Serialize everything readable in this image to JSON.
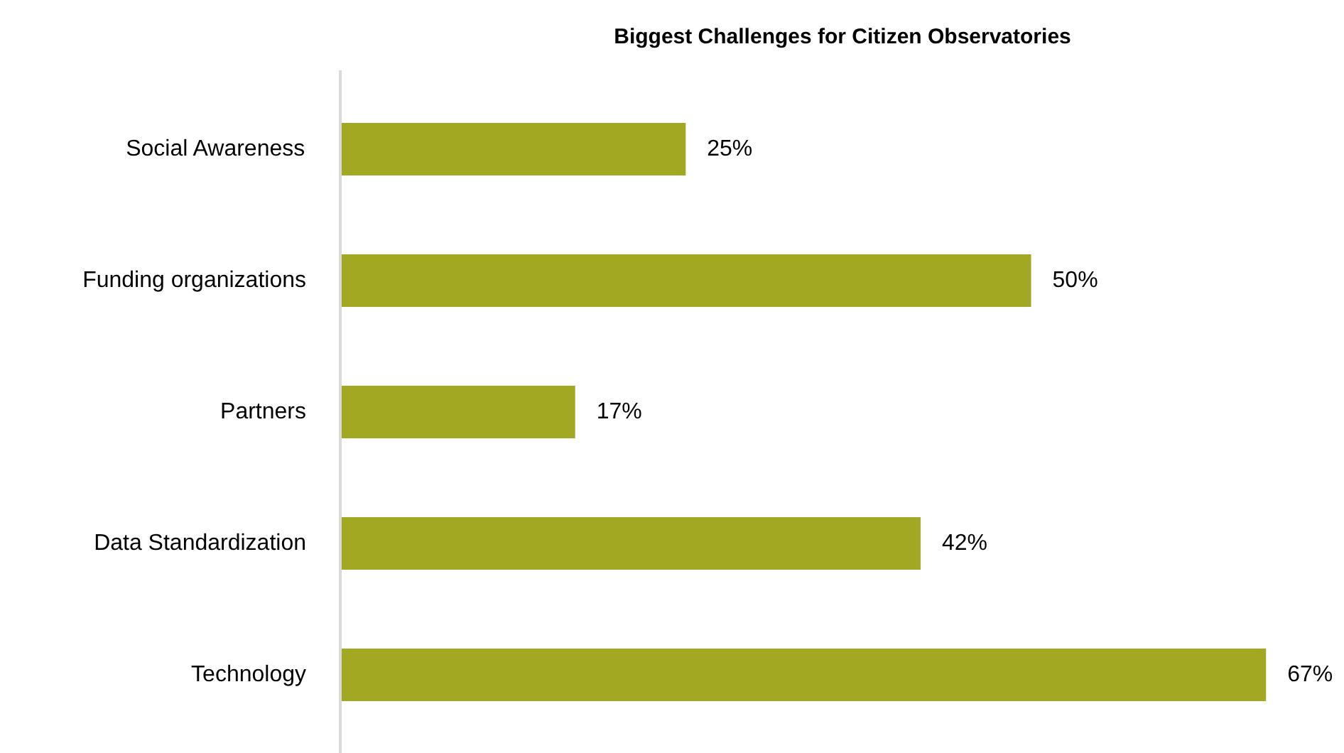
{
  "chart_data": {
    "type": "bar",
    "orientation": "horizontal",
    "title": "Biggest Challenges for Citizen Observatories",
    "categories": [
      "Social Awareness",
      "Funding organizations",
      "Partners",
      "Data Standardization",
      "Technology"
    ],
    "values": [
      25,
      50,
      17,
      42,
      67
    ],
    "value_labels": [
      "25%",
      "50%",
      "17%",
      "42%",
      "67%"
    ],
    "color": "#a2a822",
    "tick_labels": "y",
    "grid": false
  }
}
